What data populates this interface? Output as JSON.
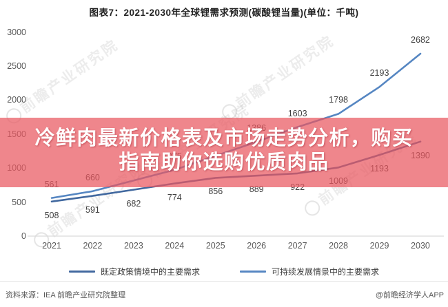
{
  "title": "图表7：2021-2030年全球锂需求预测(碳酸锂当量)(单位：千吨)",
  "banner": {
    "line1": "冷鲜肉最新价格表及市场走势分析，购买",
    "line2": "指南助你选购优质肉品",
    "overlay_color": "rgba(233,88,96,0.72)",
    "text_color": "#ffffff"
  },
  "watermark": {
    "text": "前瞻产业研究院"
  },
  "chart_data": {
    "type": "line",
    "title": "图表7：2021-2030年全球锂需求预测(碳酸锂当量)(单位：千吨)",
    "unit": "千吨",
    "x": [
      2021,
      2022,
      2023,
      2024,
      2025,
      2026,
      2027,
      2028,
      2029,
      2030
    ],
    "series": [
      {
        "name": "既定政策情境中的主要需求",
        "color": "#41689F",
        "values": [
          508,
          591,
          682,
          774,
          856,
          889,
          922,
          1009,
          1193,
          1390
        ],
        "labels": [
          "508",
          "591",
          "682",
          "774",
          "856",
          "889",
          "922",
          "1009",
          "1193",
          "1390"
        ],
        "label_side": "below"
      },
      {
        "name": "可持续发展情景中的主要需求",
        "color": "#5586C2",
        "values": [
          561,
          660,
          818,
          975,
          1180,
          1386,
          1603,
          1798,
          2193,
          2682
        ],
        "labels": [
          "561",
          "660",
          "",
          "975",
          "",
          "1386",
          "1603",
          "1798",
          "2193",
          "2682"
        ],
        "label_side": "above"
      }
    ],
    "ylim": [
      0,
      3000
    ],
    "yticks": [
      0,
      500,
      1000,
      1500,
      2000,
      2500,
      3000
    ],
    "grid": false,
    "legend_position": "bottom"
  },
  "footer": {
    "source": "资料来源：IEA 前瞻产业研究院整理",
    "credit": "@前瞻经济学人APP"
  }
}
